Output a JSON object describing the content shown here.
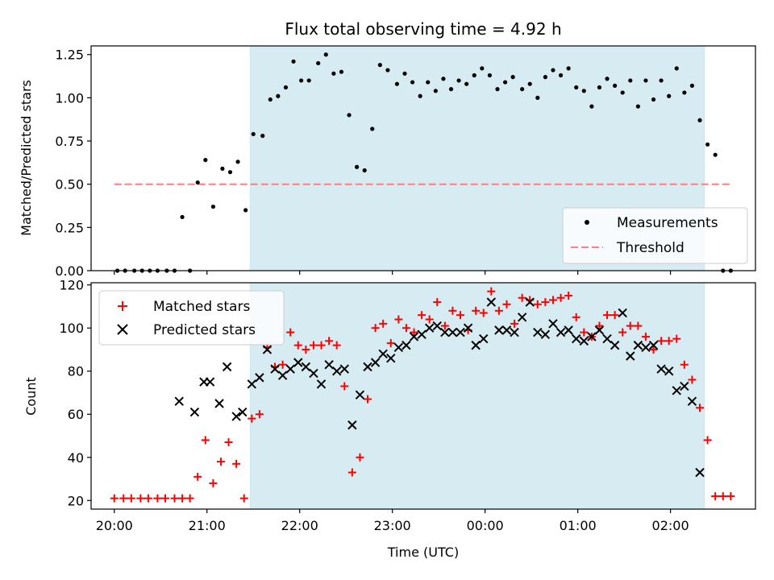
{
  "chart_data": [
    {
      "type": "scatter",
      "title": "Flux total observing time = 4.92 h",
      "ylabel": "Matched/Predicted stars",
      "xlabel": "",
      "ylim": [
        0,
        1.3
      ],
      "yticks": [
        "0.00",
        "0.25",
        "0.50",
        "0.75",
        "1.00",
        "1.25"
      ],
      "grid": false,
      "legend_position": "lower-right",
      "shaded_span": [
        "21:28",
        "02:22"
      ],
      "threshold": {
        "name": "Threshold",
        "value": 0.5,
        "color": "#ff7f7f",
        "style": "dashed"
      },
      "series": [
        {
          "name": "Measurements",
          "marker": "dot",
          "color": "#000000",
          "points": [
            [
              "20:02",
              0.0
            ],
            [
              "20:07",
              0.0
            ],
            [
              "20:13",
              0.0
            ],
            [
              "20:18",
              0.0
            ],
            [
              "20:23",
              0.0
            ],
            [
              "20:28",
              0.0
            ],
            [
              "20:34",
              0.0
            ],
            [
              "20:39",
              0.0
            ],
            [
              "20:44",
              0.31
            ],
            [
              "20:49",
              0.0
            ],
            [
              "20:54",
              0.51
            ],
            [
              "20:59",
              0.64
            ],
            [
              "21:04",
              0.37
            ],
            [
              "21:10",
              0.59
            ],
            [
              "21:15",
              0.57
            ],
            [
              "21:20",
              0.63
            ],
            [
              "21:25",
              0.35
            ],
            [
              "21:30",
              0.79
            ],
            [
              "21:36",
              0.78
            ],
            [
              "21:41",
              0.99
            ],
            [
              "21:46",
              1.01
            ],
            [
              "21:51",
              1.06
            ],
            [
              "21:56",
              1.21
            ],
            [
              "22:01",
              1.1
            ],
            [
              "22:06",
              1.1
            ],
            [
              "22:12",
              1.2
            ],
            [
              "22:17",
              1.25
            ],
            [
              "22:22",
              1.14
            ],
            [
              "22:27",
              1.15
            ],
            [
              "22:32",
              0.9
            ],
            [
              "22:37",
              0.6
            ],
            [
              "22:42",
              0.58
            ],
            [
              "22:47",
              0.82
            ],
            [
              "22:52",
              1.19
            ],
            [
              "22:57",
              1.16
            ],
            [
              "23:03",
              1.08
            ],
            [
              "23:08",
              1.14
            ],
            [
              "23:13",
              1.09
            ],
            [
              "23:18",
              1.01
            ],
            [
              "23:23",
              1.09
            ],
            [
              "23:28",
              1.04
            ],
            [
              "23:33",
              1.11
            ],
            [
              "23:38",
              1.05
            ],
            [
              "23:43",
              1.1
            ],
            [
              "23:48",
              1.08
            ],
            [
              "23:53",
              1.13
            ],
            [
              "23:58",
              1.17
            ],
            [
              "00:03",
              1.13
            ],
            [
              "00:08",
              1.05
            ],
            [
              "00:13",
              1.09
            ],
            [
              "00:18",
              1.12
            ],
            [
              "00:24",
              1.05
            ],
            [
              "00:29",
              1.08
            ],
            [
              "00:34",
              1.0
            ],
            [
              "00:39",
              1.12
            ],
            [
              "00:44",
              1.16
            ],
            [
              "00:49",
              1.13
            ],
            [
              "00:54",
              1.17
            ],
            [
              "00:59",
              1.06
            ],
            [
              "01:04",
              1.04
            ],
            [
              "01:09",
              0.95
            ],
            [
              "01:14",
              1.06
            ],
            [
              "01:19",
              1.11
            ],
            [
              "01:24",
              1.07
            ],
            [
              "01:29",
              1.03
            ],
            [
              "01:34",
              1.1
            ],
            [
              "01:39",
              0.95
            ],
            [
              "01:44",
              1.1
            ],
            [
              "01:49",
              0.99
            ],
            [
              "01:54",
              1.1
            ],
            [
              "01:59",
              1.01
            ],
            [
              "02:04",
              1.17
            ],
            [
              "02:09",
              1.03
            ],
            [
              "02:14",
              1.07
            ],
            [
              "02:19",
              0.87
            ],
            [
              "02:24",
              0.73
            ],
            [
              "02:29",
              0.67
            ],
            [
              "02:34",
              0.0
            ],
            [
              "02:39",
              0.0
            ]
          ]
        }
      ]
    },
    {
      "type": "scatter",
      "title": "",
      "ylabel": "Count",
      "xlabel": "Time (UTC)",
      "ylim": [
        16,
        121
      ],
      "yticks": [
        "20",
        "40",
        "60",
        "80",
        "100",
        "120"
      ],
      "xlim": [
        "19:45",
        "02:55"
      ],
      "xticks": [
        "20:00",
        "21:00",
        "22:00",
        "23:00",
        "00:00",
        "01:00",
        "02:00"
      ],
      "grid": false,
      "legend_position": "upper-left",
      "shaded_span": [
        "21:28",
        "02:22"
      ],
      "series": [
        {
          "name": "Matched stars",
          "marker": "plus",
          "color": "#ff0000",
          "points": [
            [
              "20:00",
              21
            ],
            [
              "20:06",
              21
            ],
            [
              "20:11",
              21
            ],
            [
              "20:17",
              21
            ],
            [
              "20:22",
              21
            ],
            [
              "20:28",
              21
            ],
            [
              "20:33",
              21
            ],
            [
              "20:39",
              21
            ],
            [
              "20:44",
              21
            ],
            [
              "20:49",
              21
            ],
            [
              "20:54",
              31
            ],
            [
              "20:59",
              48
            ],
            [
              "21:04",
              28
            ],
            [
              "21:09",
              38
            ],
            [
              "21:14",
              47
            ],
            [
              "21:19",
              37
            ],
            [
              "21:24",
              21
            ],
            [
              "21:29",
              58
            ],
            [
              "21:34",
              60
            ],
            [
              "21:39",
              91
            ],
            [
              "21:44",
              82
            ],
            [
              "21:49",
              83
            ],
            [
              "21:54",
              98
            ],
            [
              "21:59",
              92
            ],
            [
              "22:04",
              90
            ],
            [
              "22:09",
              92
            ],
            [
              "22:14",
              92
            ],
            [
              "22:19",
              94
            ],
            [
              "22:24",
              92
            ],
            [
              "22:29",
              73
            ],
            [
              "22:34",
              33
            ],
            [
              "22:39",
              40
            ],
            [
              "22:44",
              67
            ],
            [
              "22:49",
              100
            ],
            [
              "22:54",
              102
            ],
            [
              "22:59",
              93
            ],
            [
              "23:04",
              104
            ],
            [
              "23:09",
              100
            ],
            [
              "23:14",
              98
            ],
            [
              "23:19",
              106
            ],
            [
              "23:24",
              104
            ],
            [
              "23:29",
              112
            ],
            [
              "23:34",
              101
            ],
            [
              "23:39",
              108
            ],
            [
              "23:44",
              106
            ],
            [
              "23:49",
              99
            ],
            [
              "23:54",
              108
            ],
            [
              "23:59",
              107
            ],
            [
              "00:04",
              117
            ],
            [
              "00:09",
              108
            ],
            [
              "00:14",
              111
            ],
            [
              "00:19",
              102
            ],
            [
              "00:24",
              114
            ],
            [
              "00:29",
              113
            ],
            [
              "00:34",
              111
            ],
            [
              "00:39",
              112
            ],
            [
              "00:44",
              113
            ],
            [
              "00:49",
              114
            ],
            [
              "00:54",
              115
            ],
            [
              "00:59",
              105
            ],
            [
              "01:04",
              98
            ],
            [
              "01:09",
              96
            ],
            [
              "01:14",
              101
            ],
            [
              "01:19",
              106
            ],
            [
              "01:24",
              106
            ],
            [
              "01:29",
              98
            ],
            [
              "01:34",
              101
            ],
            [
              "01:39",
              101
            ],
            [
              "01:44",
              96
            ],
            [
              "01:49",
              90
            ],
            [
              "01:54",
              94
            ],
            [
              "01:59",
              94
            ],
            [
              "02:04",
              95
            ],
            [
              "02:09",
              83
            ],
            [
              "02:14",
              76
            ],
            [
              "02:19",
              63
            ],
            [
              "02:24",
              48
            ],
            [
              "02:29",
              22
            ],
            [
              "02:34",
              22
            ],
            [
              "02:39",
              22
            ]
          ]
        },
        {
          "name": "Predicted stars",
          "marker": "cross",
          "color": "#000000",
          "points": [
            [
              "20:42",
              66
            ],
            [
              "20:52",
              61
            ],
            [
              "20:58",
              75
            ],
            [
              "21:02",
              75
            ],
            [
              "21:08",
              65
            ],
            [
              "21:13",
              82
            ],
            [
              "21:19",
              59
            ],
            [
              "21:23",
              61
            ],
            [
              "21:29",
              74
            ],
            [
              "21:34",
              77
            ],
            [
              "21:39",
              90
            ],
            [
              "21:44",
              81
            ],
            [
              "21:49",
              78
            ],
            [
              "21:54",
              81
            ],
            [
              "21:59",
              84
            ],
            [
              "22:04",
              82
            ],
            [
              "22:09",
              79
            ],
            [
              "22:14",
              74
            ],
            [
              "22:19",
              83
            ],
            [
              "22:24",
              80
            ],
            [
              "22:29",
              81
            ],
            [
              "22:34",
              55
            ],
            [
              "22:39",
              69
            ],
            [
              "22:44",
              82
            ],
            [
              "22:49",
              84
            ],
            [
              "22:54",
              88
            ],
            [
              "22:59",
              86
            ],
            [
              "23:04",
              91
            ],
            [
              "23:09",
              92
            ],
            [
              "23:14",
              96
            ],
            [
              "23:19",
              97
            ],
            [
              "23:24",
              100
            ],
            [
              "23:29",
              101
            ],
            [
              "23:34",
              98
            ],
            [
              "23:39",
              98
            ],
            [
              "23:44",
              98
            ],
            [
              "23:49",
              100
            ],
            [
              "23:54",
              92
            ],
            [
              "23:59",
              95
            ],
            [
              "00:04",
              112
            ],
            [
              "00:09",
              99
            ],
            [
              "00:14",
              99
            ],
            [
              "00:19",
              98
            ],
            [
              "00:24",
              105
            ],
            [
              "00:29",
              112
            ],
            [
              "00:34",
              98
            ],
            [
              "00:39",
              97
            ],
            [
              "00:44",
              102
            ],
            [
              "00:49",
              98
            ],
            [
              "00:54",
              99
            ],
            [
              "00:59",
              95
            ],
            [
              "01:04",
              94
            ],
            [
              "01:09",
              96
            ],
            [
              "01:14",
              99
            ],
            [
              "01:19",
              95
            ],
            [
              "01:24",
              92
            ],
            [
              "01:29",
              107
            ],
            [
              "01:34",
              87
            ],
            [
              "01:39",
              92
            ],
            [
              "01:44",
              91
            ],
            [
              "01:49",
              92
            ],
            [
              "01:54",
              81
            ],
            [
              "01:59",
              80
            ],
            [
              "02:04",
              71
            ],
            [
              "02:09",
              73
            ],
            [
              "02:14",
              66
            ],
            [
              "02:19",
              33
            ]
          ]
        }
      ]
    }
  ]
}
